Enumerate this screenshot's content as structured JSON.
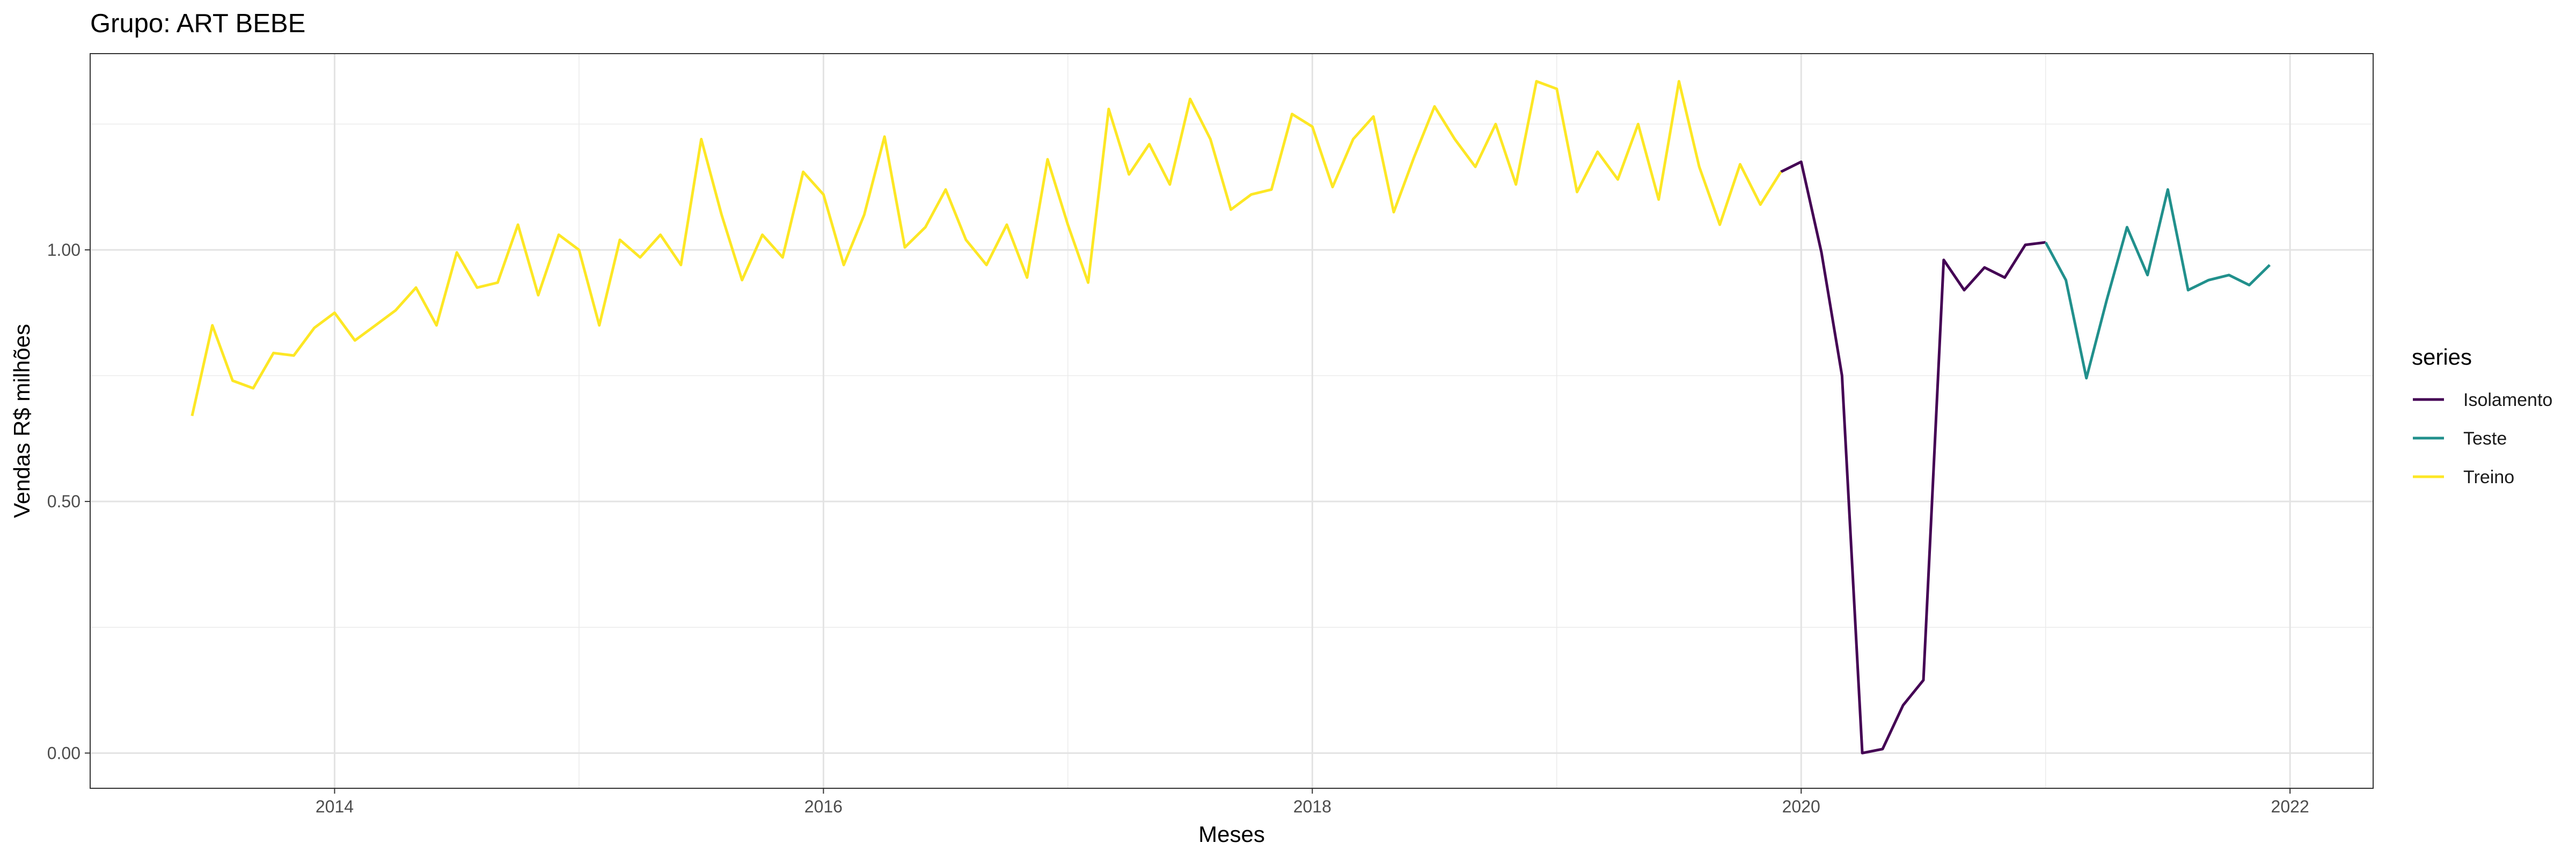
{
  "chart_data": {
    "type": "line",
    "title": "Grupo: ART BEBE",
    "xlabel": "Meses",
    "ylabel": "Vendas R$ milhões",
    "x_ticks": [
      2014,
      2016,
      2018,
      2020,
      2022
    ],
    "x_tick_labels": [
      "2014",
      "2016",
      "2018",
      "2020",
      "2022"
    ],
    "y_ticks": [
      0,
      0.5,
      1.0
    ],
    "y_tick_labels": [
      "0.00",
      "0.50",
      "1.00"
    ],
    "xlim": [
      2013.0,
      2022.34
    ],
    "ylim": [
      -0.07,
      1.39
    ],
    "grid": true,
    "legend": {
      "title": "series",
      "position": "right"
    },
    "series": [
      {
        "name": "Isolamento",
        "color": "#440154",
        "x": [
          2019.917,
          2020.0,
          2020.083,
          2020.167,
          2020.25,
          2020.333,
          2020.417,
          2020.5,
          2020.583,
          2020.667,
          2020.75,
          2020.833,
          2020.917,
          2021.0
        ],
        "values": [
          1.155,
          1.175,
          0.995,
          0.75,
          0.0,
          0.008,
          0.095,
          0.145,
          0.98,
          0.92,
          0.965,
          0.945,
          1.01,
          1.015
        ]
      },
      {
        "name": "Teste",
        "color": "#21908C",
        "x": [
          2021.0,
          2021.083,
          2021.167,
          2021.25,
          2021.333,
          2021.417,
          2021.5,
          2021.583,
          2021.667,
          2021.75,
          2021.833,
          2021.917
        ],
        "values": [
          1.015,
          0.94,
          0.745,
          0.9,
          1.045,
          0.95,
          1.12,
          0.92,
          0.94,
          0.95,
          0.93,
          0.97
        ]
      },
      {
        "name": "Treino",
        "color": "#FDE725",
        "x": [
          2013.417,
          2013.5,
          2013.583,
          2013.667,
          2013.75,
          2013.833,
          2013.917,
          2014.0,
          2014.083,
          2014.167,
          2014.25,
          2014.333,
          2014.417,
          2014.5,
          2014.583,
          2014.667,
          2014.75,
          2014.833,
          2014.917,
          2015.0,
          2015.083,
          2015.167,
          2015.25,
          2015.333,
          2015.417,
          2015.5,
          2015.583,
          2015.667,
          2015.75,
          2015.833,
          2015.917,
          2016.0,
          2016.083,
          2016.167,
          2016.25,
          2016.333,
          2016.417,
          2016.5,
          2016.583,
          2016.667,
          2016.75,
          2016.833,
          2016.917,
          2017.0,
          2017.083,
          2017.167,
          2017.25,
          2017.333,
          2017.417,
          2017.5,
          2017.583,
          2017.667,
          2017.75,
          2017.833,
          2017.917,
          2018.0,
          2018.083,
          2018.167,
          2018.25,
          2018.333,
          2018.417,
          2018.5,
          2018.583,
          2018.667,
          2018.75,
          2018.833,
          2018.917,
          2019.0,
          2019.083,
          2019.167,
          2019.25,
          2019.333,
          2019.417,
          2019.5,
          2019.583,
          2019.667,
          2019.75,
          2019.833,
          2019.917
        ],
        "values": [
          0.67,
          0.85,
          0.74,
          0.725,
          0.795,
          0.79,
          0.845,
          0.875,
          0.82,
          0.85,
          0.88,
          0.925,
          0.85,
          0.995,
          0.925,
          0.935,
          1.05,
          0.91,
          1.03,
          1.0,
          0.85,
          1.02,
          0.985,
          1.03,
          0.97,
          1.22,
          1.07,
          0.94,
          1.03,
          0.985,
          1.155,
          1.11,
          0.97,
          1.07,
          1.225,
          1.005,
          1.045,
          1.12,
          1.02,
          0.97,
          1.05,
          0.945,
          1.18,
          1.05,
          0.935,
          1.28,
          1.15,
          1.21,
          1.13,
          1.3,
          1.22,
          1.08,
          1.11,
          1.12,
          1.27,
          1.245,
          1.125,
          1.22,
          1.265,
          1.075,
          1.185,
          1.285,
          1.22,
          1.165,
          1.25,
          1.13,
          1.335,
          1.32,
          1.115,
          1.195,
          1.14,
          1.25,
          1.1,
          1.335,
          1.165,
          1.05,
          1.17,
          1.09,
          1.155
        ]
      }
    ]
  }
}
